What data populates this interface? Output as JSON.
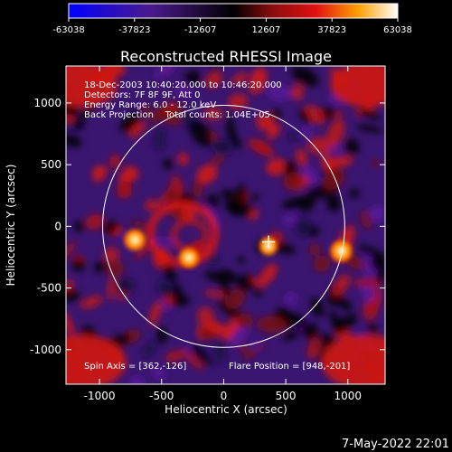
{
  "chart_data": {
    "type": "heatmap",
    "title": "Reconstructed RHESSI Image",
    "xlabel": "Heliocentric X (arcsec)",
    "ylabel": "Heliocentric Y (arcsec)",
    "xlim": [
      -1270,
      1300
    ],
    "ylim": [
      -1280,
      1300
    ],
    "x_ticks": [
      -1000,
      -500,
      0,
      500,
      1000
    ],
    "y_ticks": [
      1000,
      500,
      0,
      -500,
      -1000
    ],
    "x_tick_labels": [
      "-1000",
      "-500",
      "0",
      "500",
      "1000"
    ],
    "y_tick_labels": [
      "1000",
      "500",
      "0",
      "-500",
      "-1000"
    ],
    "colorbar": {
      "range": [
        -63038,
        63038
      ],
      "ticks": [
        -63038,
        -37823,
        -12607,
        12607,
        37823,
        63038
      ],
      "tick_labels": [
        "-63038",
        "-37823",
        "-12607",
        "12607",
        "37823",
        "63038"
      ],
      "stops": [
        {
          "v": 0.0,
          "c": "#0000ff"
        },
        {
          "v": 0.25,
          "c": "#4a1a8c"
        },
        {
          "v": 0.5,
          "c": "#000000"
        },
        {
          "v": 0.62,
          "c": "#8b0d0d"
        },
        {
          "v": 0.75,
          "c": "#e01010"
        },
        {
          "v": 0.88,
          "c": "#ffa000"
        },
        {
          "v": 1.0,
          "c": "#ffffff"
        }
      ]
    },
    "annotations": [
      "18-Dec-2003 10:40:20.000 to 10:46:20.000",
      "Detectors: 7F 8F 9F, Att 0",
      "Energy Range: 6.0 - 12.0 keV",
      "Back Projection    Total counts: 1.04E+05"
    ],
    "footer_left": "Spin Axis = [362,-126]",
    "footer_right": "Flare Position = [948,-201]",
    "solar_disk": {
      "center": [
        0,
        0
      ],
      "radius": 975
    },
    "spin_axis": [
      362,
      -126
    ],
    "flare_position": [
      948,
      -201
    ],
    "bright_sources": [
      {
        "x": 948,
        "y": -201,
        "rel": 1.0
      },
      {
        "x": -715,
        "y": -110,
        "rel": 0.95
      },
      {
        "x": -280,
        "y": -255,
        "rel": 0.8
      },
      {
        "x": 360,
        "y": -160,
        "rel": 0.55
      }
    ]
  },
  "timestamp": "7-May-2022 22:01"
}
